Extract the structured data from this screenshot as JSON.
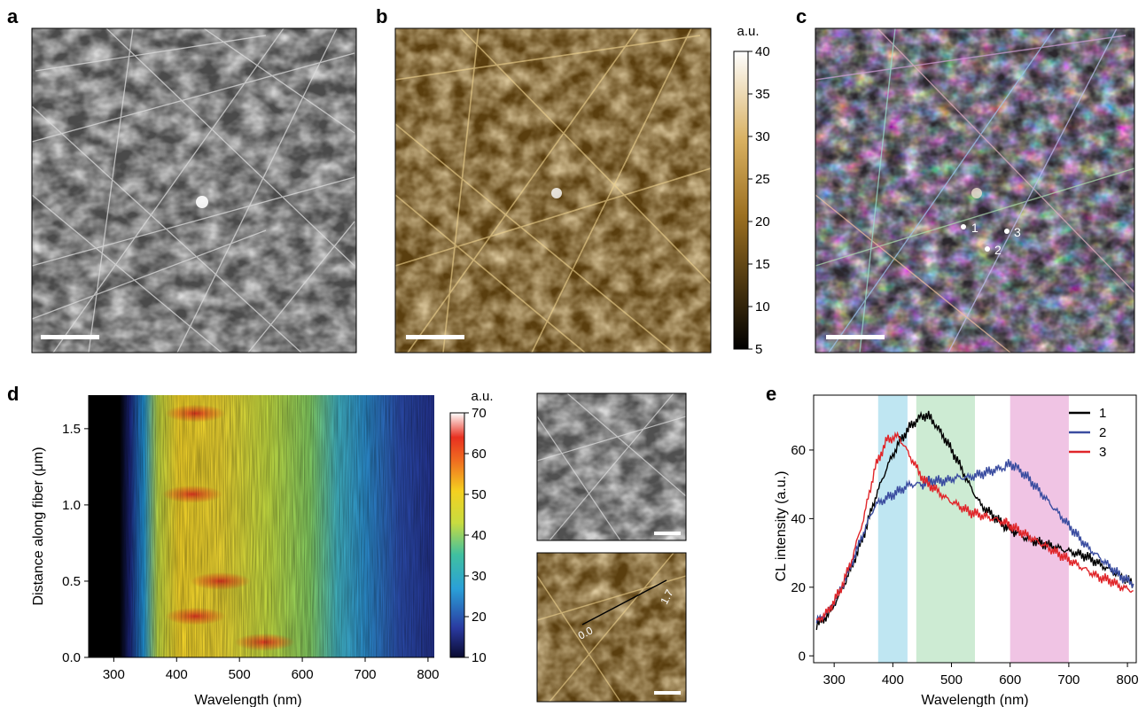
{
  "panels": {
    "a": {
      "letter": "a"
    },
    "b": {
      "letter": "b",
      "colorbar_unit": "a.u.",
      "colorbar_ticks": [
        "5",
        "10",
        "15",
        "20",
        "25",
        "30",
        "35",
        "40"
      ]
    },
    "c": {
      "letter": "c",
      "points": [
        "1",
        "2",
        "3"
      ]
    },
    "d": {
      "letter": "d",
      "colorbar_unit": "a.u.",
      "colorbar_ticks": [
        "10",
        "20",
        "30",
        "40",
        "50",
        "60",
        "70"
      ],
      "xlabel": "Wavelength (nm)",
      "ylabel": "Distance along fiber (μm)",
      "xticks": [
        "300",
        "400",
        "500",
        "600",
        "700",
        "800"
      ],
      "yticks": [
        "0.0",
        "0.5",
        "1.0",
        "1.5"
      ],
      "line_start_label": "0.0",
      "line_end_label": "1.7"
    },
    "e": {
      "letter": "e"
    }
  },
  "colors": {
    "gray_image": "#9a9a9a",
    "gold_image": "#b8882e",
    "series1": "#000000",
    "series2": "#3b4da0",
    "series3": "#e0262a",
    "band_blue": "#bfe6f2",
    "band_green": "#cdebd3",
    "band_pink": "#f0c4e4"
  },
  "chart_data": [
    {
      "type": "heatmap",
      "panel": "d",
      "xlabel": "Wavelength (nm)",
      "ylabel": "Distance along fiber (μm)",
      "xlim": [
        260,
        810
      ],
      "ylim": [
        0,
        1.72
      ],
      "zlim": [
        10,
        70
      ],
      "zlabel": "a.u.",
      "intensity_profile_by_wavelength": {
        "x": [
          260,
          300,
          330,
          350,
          370,
          400,
          430,
          460,
          500,
          550,
          600,
          650,
          680,
          700,
          750,
          800
        ],
        "values": [
          10,
          10,
          12,
          18,
          32,
          45,
          52,
          50,
          45,
          40,
          38,
          33,
          27,
          24,
          20,
          18
        ]
      },
      "hot_spots": [
        {
          "x": 430,
          "y": 1.6,
          "value": 62
        },
        {
          "x": 425,
          "y": 1.07,
          "value": 60
        },
        {
          "x": 470,
          "y": 0.5,
          "value": 60
        },
        {
          "x": 430,
          "y": 0.27,
          "value": 58
        },
        {
          "x": 540,
          "y": 0.1,
          "value": 55
        }
      ]
    },
    {
      "type": "line",
      "panel": "e",
      "xlabel": "Wavelength (nm)",
      "ylabel": "CL intensity (a.u.)",
      "xlim": [
        265,
        815
      ],
      "ylim": [
        -2,
        76
      ],
      "xticks": [
        300,
        400,
        500,
        600,
        700,
        800
      ],
      "yticks": [
        0,
        20,
        40,
        60
      ],
      "legend_position": "top-right",
      "shaded_bands": [
        {
          "from": 375,
          "to": 425,
          "color": "blue"
        },
        {
          "from": 440,
          "to": 540,
          "color": "green"
        },
        {
          "from": 600,
          "to": 700,
          "color": "pink"
        }
      ],
      "x": [
        270,
        290,
        310,
        330,
        350,
        370,
        390,
        410,
        430,
        450,
        460,
        470,
        490,
        510,
        530,
        550,
        570,
        590,
        600,
        610,
        630,
        650,
        670,
        690,
        710,
        730,
        750,
        770,
        790,
        810
      ],
      "series": [
        {
          "name": "1",
          "values": [
            9,
            12,
            18,
            26,
            35,
            46,
            55,
            62,
            67,
            70,
            70,
            68,
            63,
            57,
            50,
            44,
            41,
            38,
            37,
            36,
            34,
            33,
            32,
            31,
            30,
            29,
            27,
            25,
            23,
            21
          ]
        },
        {
          "name": "2",
          "values": [
            10,
            13,
            19,
            27,
            36,
            44,
            46,
            48,
            50,
            50,
            51,
            51,
            51,
            52,
            52,
            53,
            54,
            55,
            56,
            55,
            52,
            48,
            44,
            40,
            36,
            32,
            29,
            26,
            23,
            21
          ]
        },
        {
          "name": "3",
          "values": [
            10,
            13,
            19,
            28,
            40,
            55,
            63,
            64,
            58,
            52,
            50,
            49,
            46,
            44,
            42,
            41,
            40,
            39,
            38,
            37,
            35,
            33,
            31,
            29,
            27,
            25,
            23,
            22,
            20,
            19
          ]
        }
      ]
    }
  ]
}
